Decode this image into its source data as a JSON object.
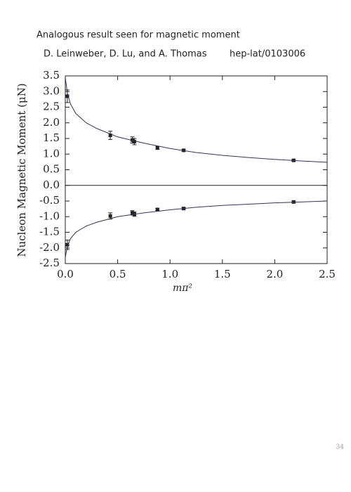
{
  "header": {
    "title": "Analogous result seen for magnetic moment",
    "authors": "D. Leinweber, D. Lu, and A. Thomas",
    "reference": "hep-lat/0103006"
  },
  "page_number": "34",
  "chart_data": {
    "type": "scatter",
    "xlabel": "mπ²",
    "ylabel": "Nucleon Magnetic Moment (μN)",
    "xlim": [
      0,
      2.5
    ],
    "ylim": [
      -2.5,
      3.5
    ],
    "xticks": [
      {
        "value": 0,
        "label": "0.0"
      },
      0.5,
      {
        "value": 1,
        "label": "1.0"
      },
      1.5,
      {
        "value": 2,
        "label": "2.0"
      },
      2.5
    ],
    "yticks": [
      -2.5,
      {
        "value": -2,
        "label": "-2.0"
      },
      -1.5,
      {
        "value": -1,
        "label": "-1.0"
      },
      -0.5,
      {
        "value": 0,
        "label": "0.0"
      },
      0.5,
      {
        "value": 1,
        "label": "1.0"
      },
      1.5,
      {
        "value": 2,
        "label": "2.0"
      },
      2.5,
      {
        "value": 3,
        "label": "3.0"
      },
      3.5
    ],
    "reference_line": 0,
    "series": [
      {
        "type": "scatter",
        "color": "#222222",
        "x": [
          0.02,
          0.43,
          0.64,
          0.66,
          0.88,
          1.13,
          2.18
        ],
        "values": [
          2.85,
          1.6,
          1.45,
          1.4,
          1.2,
          1.12,
          0.8
        ],
        "errors": [
          0.2,
          0.13,
          0.1,
          0.1,
          0.05,
          0.03,
          0.03
        ]
      },
      {
        "type": "scatter",
        "color": "#222222",
        "x": [
          0.02,
          0.43,
          0.64,
          0.66,
          0.88,
          1.13,
          2.18
        ],
        "values": [
          -1.9,
          -0.98,
          -0.88,
          -0.92,
          -0.77,
          -0.74,
          -0.53
        ],
        "errors": [
          0.15,
          0.1,
          0.07,
          0.07,
          0.03,
          0.03,
          0.03
        ]
      },
      {
        "type": "line",
        "color": "#333355",
        "x": [
          0,
          0.02,
          0.05,
          0.1,
          0.2,
          0.3,
          0.5,
          0.75,
          1.0,
          1.25,
          1.5,
          1.75,
          2.0,
          2.25,
          2.5
        ],
        "values": [
          3.45,
          2.95,
          2.6,
          2.3,
          2.0,
          1.82,
          1.55,
          1.35,
          1.18,
          1.05,
          0.96,
          0.89,
          0.83,
          0.78,
          0.74
        ]
      },
      {
        "type": "line",
        "color": "#333355",
        "x": [
          0,
          0.02,
          0.05,
          0.1,
          0.2,
          0.3,
          0.5,
          0.75,
          1.0,
          1.25,
          1.5,
          1.75,
          2.0,
          2.25,
          2.5
        ],
        "values": [
          -2.3,
          -1.95,
          -1.7,
          -1.5,
          -1.3,
          -1.18,
          -1.0,
          -0.88,
          -0.78,
          -0.7,
          -0.64,
          -0.6,
          -0.56,
          -0.53,
          -0.5
        ]
      }
    ]
  }
}
